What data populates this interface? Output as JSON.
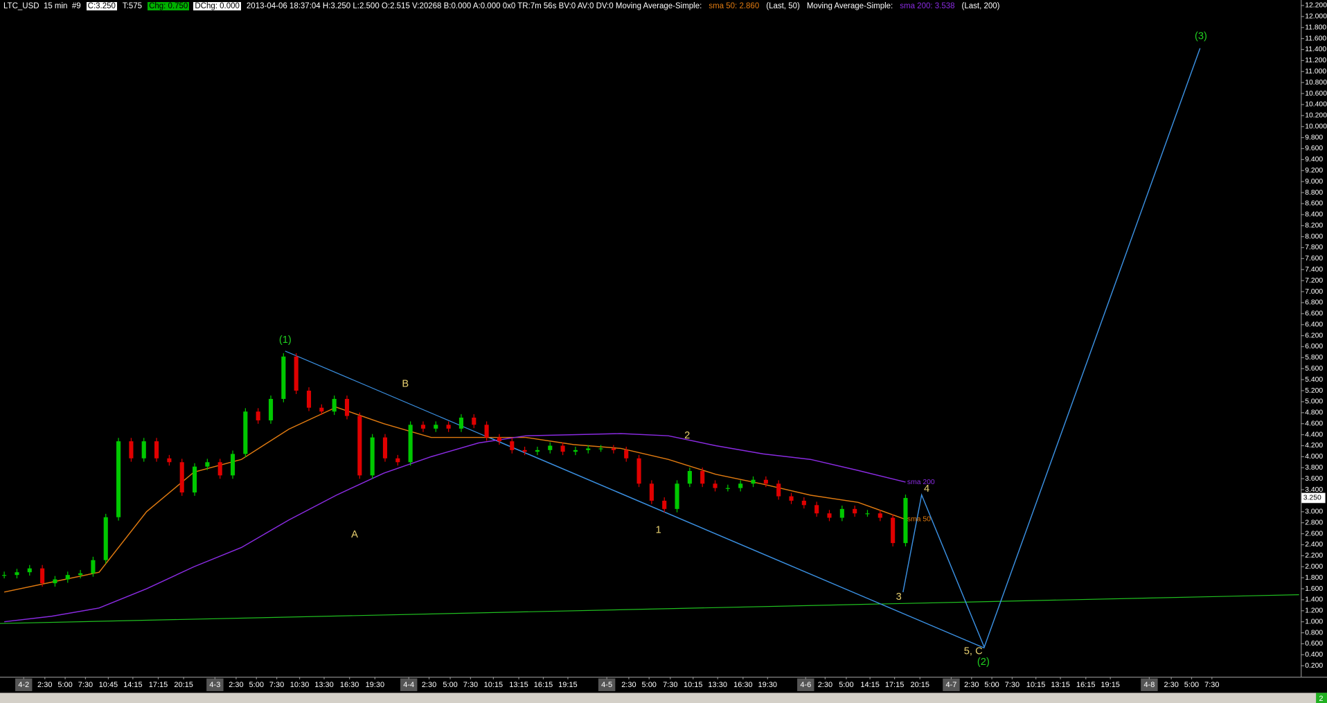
{
  "header": {
    "items": [
      "LTC_USD  15 min  #9",
      "C:3.250",
      "T:575",
      "Chg: 0.750",
      "DChg: 0.000",
      "2013-04-06 18:37:04 H:3.250 L:2.500 O:2.515 V:20268 B:0.000 A:0.000 0x0 TR:7m 56s BV:0 AV:0 DV:0 Moving Average-Simple:",
      "sma 50: 2.860",
      "(Last, 50)",
      "Moving Average-Simple:",
      "sma 200: 3.538",
      "(Last, 200)"
    ]
  },
  "chart_data": {
    "type": "candlestick",
    "series": [
      {
        "name": "LTC_USD",
        "color": "#00c800",
        "down_color": "#e00000",
        "values": [
          1.85,
          1.9,
          1.97,
          1.7,
          1.77,
          1.85,
          1.88,
          2.12,
          2.9,
          4.28,
          3.97,
          4.28,
          3.97,
          3.9,
          3.35,
          3.82,
          3.9,
          3.66,
          4.05,
          4.82,
          4.66,
          5.05,
          5.82,
          5.2,
          4.89,
          4.82,
          5.05,
          4.74,
          3.66,
          4.35,
          3.97,
          3.9,
          4.58,
          4.51,
          4.58,
          4.51,
          4.71,
          4.58,
          4.35,
          4.28,
          4.12,
          4.09,
          4.12,
          4.2,
          4.09,
          4.12,
          4.15,
          4.15,
          4.12,
          3.97,
          3.51,
          3.2,
          3.05,
          3.51,
          3.74,
          3.51,
          3.43,
          3.43,
          3.51,
          3.58,
          3.51,
          3.28,
          3.2,
          3.12,
          2.97,
          2.89,
          3.05,
          2.97,
          2.97,
          2.89,
          2.43,
          3.25
        ]
      },
      {
        "name": "sma 50",
        "color": "#e07a10",
        "values": [
          1.54,
          1.72,
          1.9,
          3.0,
          3.72,
          3.95,
          4.5,
          4.9,
          4.6,
          4.35,
          4.35,
          4.35,
          4.22,
          4.15,
          3.95,
          3.68,
          3.5,
          3.3,
          3.17,
          2.86
        ]
      },
      {
        "name": "sma 200",
        "color": "#8a2be2",
        "values": [
          1.0,
          1.1,
          1.25,
          1.6,
          2.0,
          2.35,
          2.85,
          3.3,
          3.7,
          4.0,
          4.25,
          4.38,
          4.4,
          4.42,
          4.38,
          4.2,
          4.05,
          3.95,
          3.75,
          3.538
        ]
      }
    ],
    "last_price": {
      "value": 3.25,
      "label": "3.250"
    },
    "ylim": [
      0,
      12.3
    ],
    "yticks": [
      {
        "value": 0.2,
        "label": "0.200"
      },
      {
        "value": 0.4,
        "label": "0.400"
      },
      {
        "value": 0.6,
        "label": "0.600"
      },
      {
        "value": 0.8,
        "label": "0.800"
      },
      {
        "value": 1,
        "label": "1.000"
      },
      {
        "value": 1.2,
        "label": "1.200"
      },
      {
        "value": 1.4,
        "label": "1.400"
      },
      {
        "value": 1.6,
        "label": "1.600"
      },
      {
        "value": 1.8,
        "label": "1.800"
      },
      {
        "value": 2,
        "label": "2.000"
      },
      {
        "value": 2.2,
        "label": "2.200"
      },
      {
        "value": 2.4,
        "label": "2.400"
      },
      {
        "value": 2.6,
        "label": "2.600"
      },
      {
        "value": 2.8,
        "label": "2.800"
      },
      {
        "value": 3,
        "label": "3.000"
      },
      {
        "value": 3.2,
        "label": "3.200"
      },
      {
        "value": 3.4,
        "label": "3.400"
      },
      {
        "value": 3.6,
        "label": "3.600"
      },
      {
        "value": 3.8,
        "label": "3.800"
      },
      {
        "value": 4,
        "label": "4.000"
      },
      {
        "value": 4.2,
        "label": "4.200"
      },
      {
        "value": 4.4,
        "label": "4.400"
      },
      {
        "value": 4.6,
        "label": "4.600"
      },
      {
        "value": 4.8,
        "label": "4.800"
      },
      {
        "value": 5,
        "label": "5.000"
      },
      {
        "value": 5.2,
        "label": "5.200"
      },
      {
        "value": 5.4,
        "label": "5.400"
      },
      {
        "value": 5.6,
        "label": "5.600"
      },
      {
        "value": 5.8,
        "label": "5.800"
      },
      {
        "value": 6,
        "label": "6.000"
      },
      {
        "value": 6.2,
        "label": "6.200"
      },
      {
        "value": 6.4,
        "label": "6.400"
      },
      {
        "value": 6.6,
        "label": "6.600"
      },
      {
        "value": 6.8,
        "label": "6.800"
      },
      {
        "value": 7,
        "label": "7.000"
      },
      {
        "value": 7.2,
        "label": "7.200"
      },
      {
        "value": 7.4,
        "label": "7.400"
      },
      {
        "value": 7.6,
        "label": "7.600"
      },
      {
        "value": 7.8,
        "label": "7.800"
      },
      {
        "value": 8,
        "label": "8.000"
      },
      {
        "value": 8.2,
        "label": "8.200"
      },
      {
        "value": 8.4,
        "label": "8.400"
      },
      {
        "value": 8.6,
        "label": "8.600"
      },
      {
        "value": 8.8,
        "label": "8.800"
      },
      {
        "value": 9,
        "label": "9.000"
      },
      {
        "value": 9.2,
        "label": "9.200"
      },
      {
        "value": 9.4,
        "label": "9.400"
      },
      {
        "value": 9.6,
        "label": "9.600"
      },
      {
        "value": 9.8,
        "label": "9.800"
      },
      {
        "value": 10,
        "label": "10.000"
      },
      {
        "value": 10.2,
        "label": "10.200"
      },
      {
        "value": 10.4,
        "label": "10.400"
      },
      {
        "value": 10.6,
        "label": "10.600"
      },
      {
        "value": 10.8,
        "label": "10.800"
      },
      {
        "value": 11,
        "label": "11.000"
      },
      {
        "value": 11.2,
        "label": "11.200"
      },
      {
        "value": 11.4,
        "label": "11.400"
      },
      {
        "value": 11.6,
        "label": "11.600"
      },
      {
        "value": 11.8,
        "label": "11.800"
      },
      {
        "value": 12,
        "label": "12.000"
      },
      {
        "value": 12.2,
        "label": "12.200"
      }
    ],
    "xticks": [
      "4-2",
      "2:30",
      "5:00",
      "7:30",
      "10:45",
      "14:15",
      "17:15",
      "20:15",
      "4-3",
      "2:30",
      "5:00",
      "7:30",
      "10:30",
      "13:30",
      "16:30",
      "19:30",
      "4-4",
      "2:30",
      "5:00",
      "7:30",
      "10:15",
      "13:15",
      "16:15",
      "19:15",
      "4-5",
      "2:30",
      "5:00",
      "7:30",
      "10:15",
      "13:30",
      "16:30",
      "19:30",
      "4-6",
      "2:30",
      "5:00",
      "14:15",
      "17:15",
      "20:15",
      "4-7",
      "2:30",
      "5:00",
      "7:30",
      "10:15",
      "13:15",
      "16:15",
      "19:15",
      "4-8",
      "2:30",
      "5:00",
      "7:30"
    ],
    "annotations": [
      "(1)",
      "A",
      "B",
      "1",
      "2",
      "3",
      "4",
      "5, C",
      "(2)",
      "(3)"
    ],
    "page_indicator": "2"
  }
}
